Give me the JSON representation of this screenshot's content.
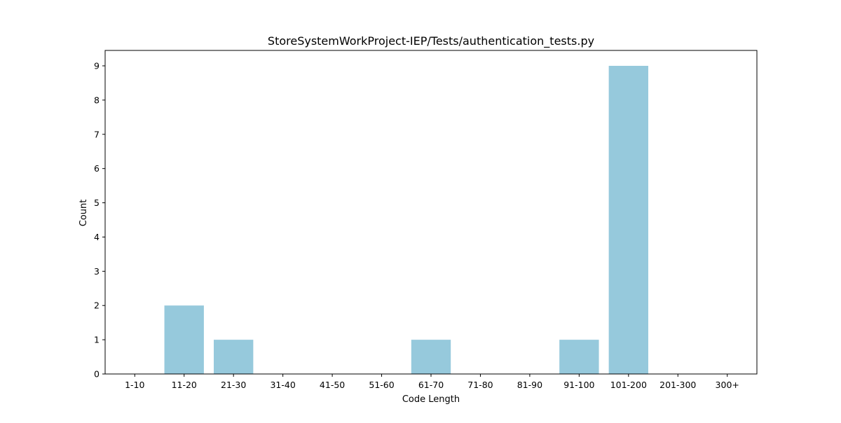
{
  "chart_data": {
    "type": "bar",
    "title": "StoreSystemWorkProject-IEP/Tests/authentication_tests.py",
    "xlabel": "Code Length",
    "ylabel": "Count",
    "categories": [
      "1-10",
      "11-20",
      "21-30",
      "31-40",
      "41-50",
      "51-60",
      "61-70",
      "71-80",
      "81-90",
      "91-100",
      "101-200",
      "201-300",
      "300+"
    ],
    "values": [
      0,
      2,
      1,
      0,
      0,
      0,
      1,
      0,
      0,
      1,
      9,
      0,
      0
    ],
    "ylim": [
      0,
      9.45
    ],
    "yticks": [
      0,
      1,
      2,
      3,
      4,
      5,
      6,
      7,
      8,
      9
    ],
    "grid": false,
    "colors": {
      "bar": "#96c9dc",
      "axis": "#000000"
    }
  }
}
